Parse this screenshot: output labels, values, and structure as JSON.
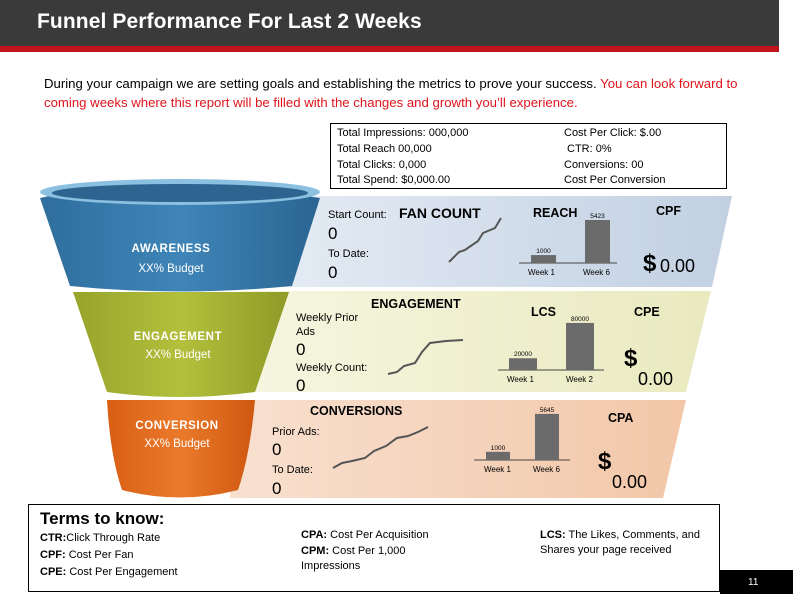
{
  "title": "Funnel Performance For Last 2 Weeks",
  "intro": {
    "black": "During  your campaign we are setting goals and establishing the metrics to prove your success.",
    "red": " You can look forward to coming weeks where this report will be filled with the changes and growth you’ll experience."
  },
  "totals": {
    "impressions": "Total Impressions:  000,000",
    "reach": "Total Reach 00,000",
    "clicks": "Total Clicks: 0,000",
    "spend": "Total Spend: $0,000.00",
    "cpc": "Cost Per Click: $.00",
    "ctr": "CTR: 0%",
    "conversions": "Conversions: 00",
    "cost_per_conversion": "Cost Per Conversion"
  },
  "funnel": {
    "awareness": {
      "label": "AWARENESS",
      "budget": "XX% Budget"
    },
    "engagement": {
      "label": "ENGAGEMENT",
      "budget": "XX% Budget"
    },
    "conversion": {
      "label": "CONVERSION",
      "budget": "XX% Budget"
    }
  },
  "bands": {
    "reach": {
      "field1_label": "Start Count:",
      "field1_value": "0",
      "field2_label": "To Date:",
      "field2_value": "0",
      "heading": "FAN COUNT",
      "chart_title": "REACH",
      "metric": "CPF",
      "dollar": "$",
      "amount": "0.00"
    },
    "engagement": {
      "field1_label": "Weekly Prior Ads",
      "field1_value": "0",
      "field2_label": "Weekly Count:",
      "field2_value": "0",
      "heading": "ENGAGEMENT",
      "chart_title": "LCS",
      "metric": "CPE",
      "dollar": "$",
      "amount": "0.00"
    },
    "conversion": {
      "field1_label": "Prior Ads:",
      "field1_value": "0",
      "field2_label": "To Date:",
      "field2_value": "0",
      "heading": "CONVERSIONS",
      "chart_title": "",
      "metric": "CPA",
      "dollar": "$",
      "amount": "0.00"
    }
  },
  "chart_data": [
    {
      "type": "bar",
      "title": "REACH",
      "categories": [
        "Week 1",
        "Week 6"
      ],
      "values": [
        1000,
        5423
      ],
      "value_labels": [
        "1000",
        "5423"
      ],
      "ylim": [
        0,
        5800
      ]
    },
    {
      "type": "bar",
      "title": "LCS",
      "categories": [
        "Week 1",
        "Week 2"
      ],
      "values": [
        20000,
        80000
      ],
      "value_labels": [
        "20000",
        "80000"
      ],
      "ylim": [
        0,
        85000
      ]
    },
    {
      "type": "bar",
      "title": "",
      "categories": [
        "Week 1",
        "Week 6"
      ],
      "values": [
        1000,
        5645
      ],
      "value_labels": [
        "1000",
        "5645"
      ],
      "ylim": [
        0,
        6000
      ]
    }
  ],
  "terms": {
    "title": "Terms to know:",
    "ctr_abbr": "CTR:",
    "ctr_text": "Click Through Rate",
    "cpf_abbr": "CPF:",
    "cpf_text": " Cost Per Fan",
    "cpe_abbr": "CPE:",
    "cpe_text": " Cost Per Engagement",
    "cpa_abbr": "CPA:",
    "cpa_text": " Cost Per Acquisition",
    "cpm_abbr": "CPM:",
    "cpm_text": " Cost Per 1,000 Impressions",
    "lcs_abbr": "LCS:",
    "lcs_text": " The Likes, Comments, and Shares your page received"
  },
  "page_number": "11",
  "colors": {
    "header": "#3a3a3a",
    "accent_red": "#c0141b",
    "awareness": "#3a79a8",
    "engagement": "#a7b632",
    "conversion": "#e26a1c",
    "band_reach": "#c9d6e6",
    "band_engagement": "#eeeec9",
    "band_conversion": "#f4cfb6",
    "bar": "#6b6b6b"
  }
}
